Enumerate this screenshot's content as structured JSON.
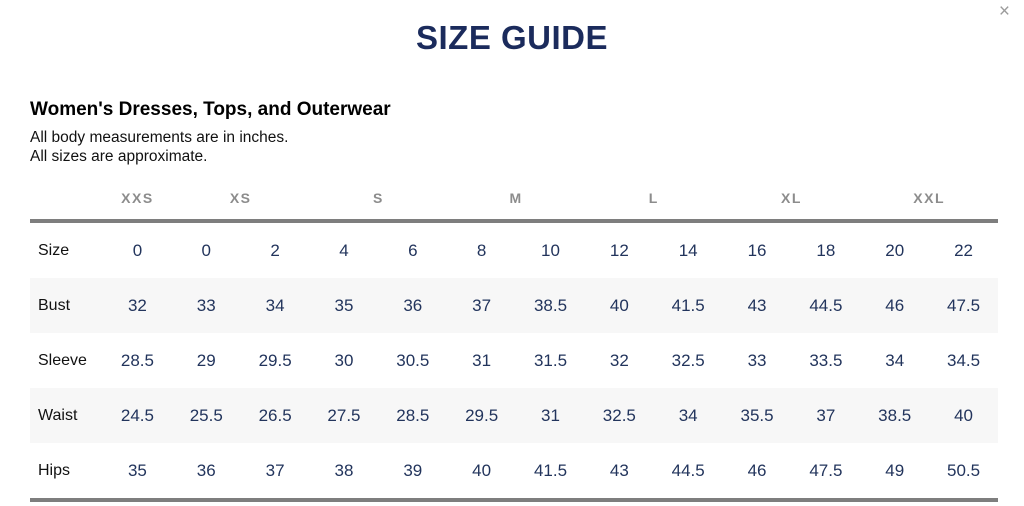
{
  "modal": {
    "title": "SIZE GUIDE",
    "close_label": "×"
  },
  "section": {
    "heading": "Women's Dresses, Tops, and Outerwear",
    "note_line1": "All body measurements are in inches.",
    "note_line2": "All sizes are approximate."
  },
  "size_chart": {
    "categories": [
      {
        "label": "XXS",
        "span": 1
      },
      {
        "label": "XS",
        "span": 2
      },
      {
        "label": "S",
        "span": 2
      },
      {
        "label": "M",
        "span": 2
      },
      {
        "label": "L",
        "span": 2
      },
      {
        "label": "XL",
        "span": 2
      },
      {
        "label": "XXL",
        "span": 2
      }
    ],
    "rows": [
      {
        "label": "Size",
        "values": [
          "0",
          "0",
          "2",
          "4",
          "6",
          "8",
          "10",
          "12",
          "14",
          "16",
          "18",
          "20",
          "22"
        ]
      },
      {
        "label": "Bust",
        "values": [
          "32",
          "33",
          "34",
          "35",
          "36",
          "37",
          "38.5",
          "40",
          "41.5",
          "43",
          "44.5",
          "46",
          "47.5"
        ]
      },
      {
        "label": "Sleeve",
        "values": [
          "28.5",
          "29",
          "29.5",
          "30",
          "30.5",
          "31",
          "31.5",
          "32",
          "32.5",
          "33",
          "33.5",
          "34",
          "34.5"
        ]
      },
      {
        "label": "Waist",
        "values": [
          "24.5",
          "25.5",
          "26.5",
          "27.5",
          "28.5",
          "29.5",
          "31",
          "32.5",
          "34",
          "35.5",
          "37",
          "38.5",
          "40"
        ]
      },
      {
        "label": "Hips",
        "values": [
          "35",
          "36",
          "37",
          "38",
          "39",
          "40",
          "41.5",
          "43",
          "44.5",
          "46",
          "47.5",
          "49",
          "50.5"
        ]
      }
    ]
  },
  "colors": {
    "title_navy": "#1b2b5c",
    "value_navy": "#22345c",
    "category_gray": "#8c8c8c",
    "rule_gray": "#7e7e7e",
    "row_stripe": "#f7f7f7",
    "close_gray": "#9b9b9b"
  }
}
